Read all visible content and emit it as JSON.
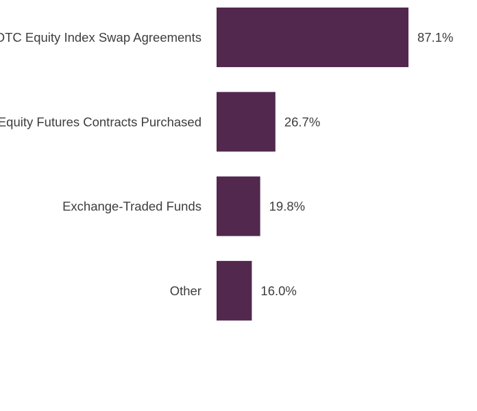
{
  "chart_data": {
    "type": "bar",
    "orientation": "horizontal",
    "categories": [
      "OTC Equity Index Swap Agreements",
      "Equity Futures Contracts Purchased",
      "Exchange-Traded Funds",
      "Other"
    ],
    "values": [
      87.1,
      26.7,
      19.8,
      16.0
    ],
    "value_labels": [
      "87.1%",
      "26.7%",
      "19.8%",
      "16.0%"
    ],
    "unit": "%",
    "title": "",
    "xlabel": "",
    "ylabel": "",
    "xlim": [
      0,
      100
    ],
    "grid": false,
    "legend": "none",
    "bar_color": "#52284e",
    "text_color": "#3d3d3d"
  }
}
